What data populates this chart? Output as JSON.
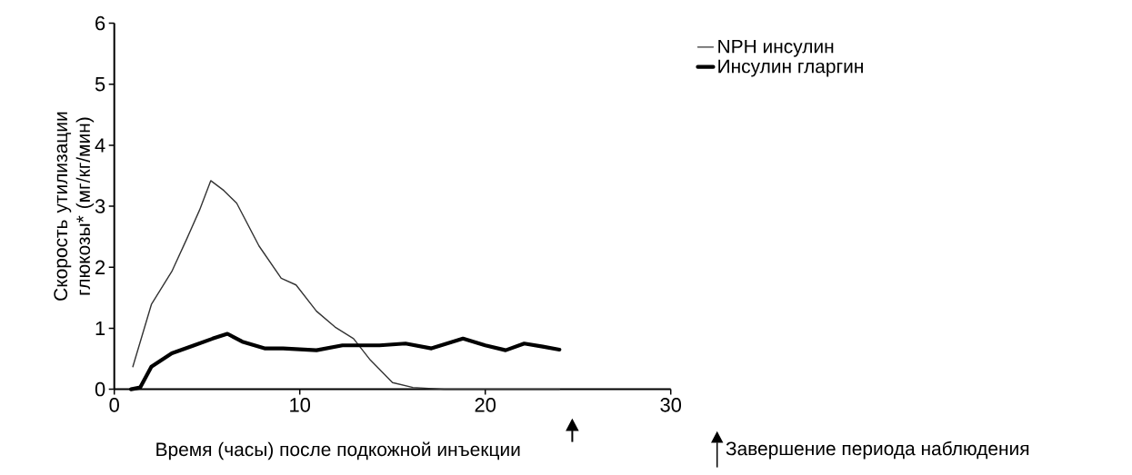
{
  "chart_data": {
    "type": "line",
    "xlabel": "Время (часы) после подкожной инъекции",
    "ylabel": "Скорость утилизации глюкозы* (мг/кг/мин)",
    "xlim": [
      0,
      30
    ],
    "xticks": [
      0,
      10,
      20,
      30
    ],
    "ylim": [
      0,
      6
    ],
    "yticks": [
      0,
      1,
      2,
      3,
      4,
      5,
      6
    ],
    "grid": false,
    "legend": "top right",
    "marker": "none",
    "line_style": "solid",
    "series": [
      {
        "name": "NPH инсулин",
        "color": "#333333",
        "x": [
          1.0,
          2.0,
          3.1,
          3.9,
          4.6,
          5.2,
          5.9,
          6.6,
          7.8,
          9.0,
          9.8,
          10.9,
          11.9,
          12.9,
          13.8,
          15.0,
          16.1,
          17.8,
          19.5,
          24.0
        ],
        "values": [
          0.37,
          1.39,
          1.93,
          2.46,
          2.94,
          3.42,
          3.26,
          3.05,
          2.35,
          1.82,
          1.71,
          1.28,
          1.02,
          0.83,
          0.48,
          0.11,
          0.03,
          0.0,
          0.0,
          0.0
        ]
      },
      {
        "name": "Инсулин гларгин",
        "color": "#000000",
        "x": [
          0.9,
          1.4,
          2.0,
          3.1,
          4.3,
          5.3,
          6.1,
          6.9,
          8.1,
          9.1,
          10.9,
          12.3,
          14.3,
          15.7,
          17.1,
          18.8,
          20.0,
          21.1,
          22.1,
          23.1,
          24.0
        ],
        "values": [
          0.0,
          0.03,
          0.37,
          0.59,
          0.72,
          0.83,
          0.91,
          0.78,
          0.67,
          0.67,
          0.64,
          0.72,
          0.72,
          0.75,
          0.67,
          0.83,
          0.72,
          0.64,
          0.75,
          0.7,
          0.65
        ]
      }
    ],
    "annotations": [
      "Завершение периода наблюдения"
    ]
  }
}
